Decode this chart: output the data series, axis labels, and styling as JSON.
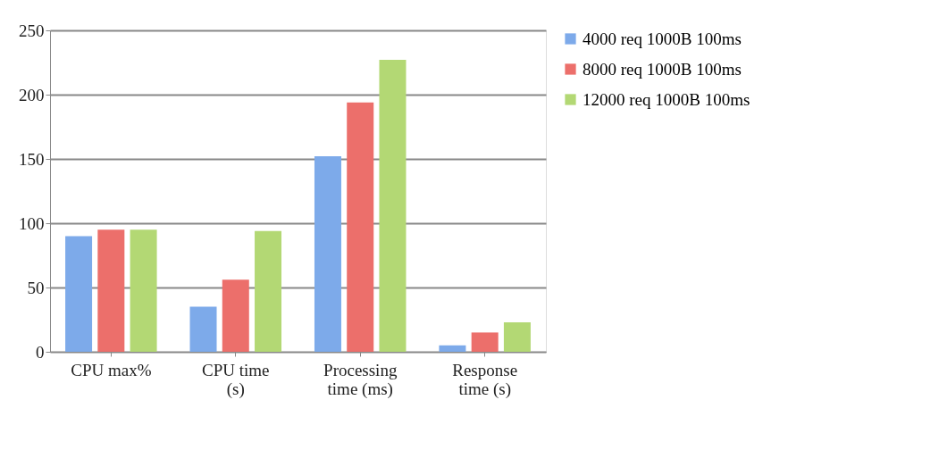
{
  "chart_data": {
    "type": "bar",
    "categories": [
      "CPU  max%",
      "CPU time (s)",
      "Processing time (ms)",
      "Response time (s)"
    ],
    "series": [
      {
        "name": "4000 req 1000B 100ms",
        "color": "#7daaea",
        "values": [
          90,
          35,
          152,
          5
        ]
      },
      {
        "name": "8000 req 1000B 100ms",
        "color": "#ec6f6b",
        "values": [
          95,
          56,
          194,
          15
        ]
      },
      {
        "name": "12000 req 1000B 100ms",
        "color": "#b3d874",
        "values": [
          95,
          94,
          227,
          23
        ]
      }
    ],
    "ylim": [
      0,
      250
    ],
    "yticks": [
      0,
      50,
      100,
      150,
      200,
      250
    ],
    "grid": "y",
    "legend": "right"
  }
}
